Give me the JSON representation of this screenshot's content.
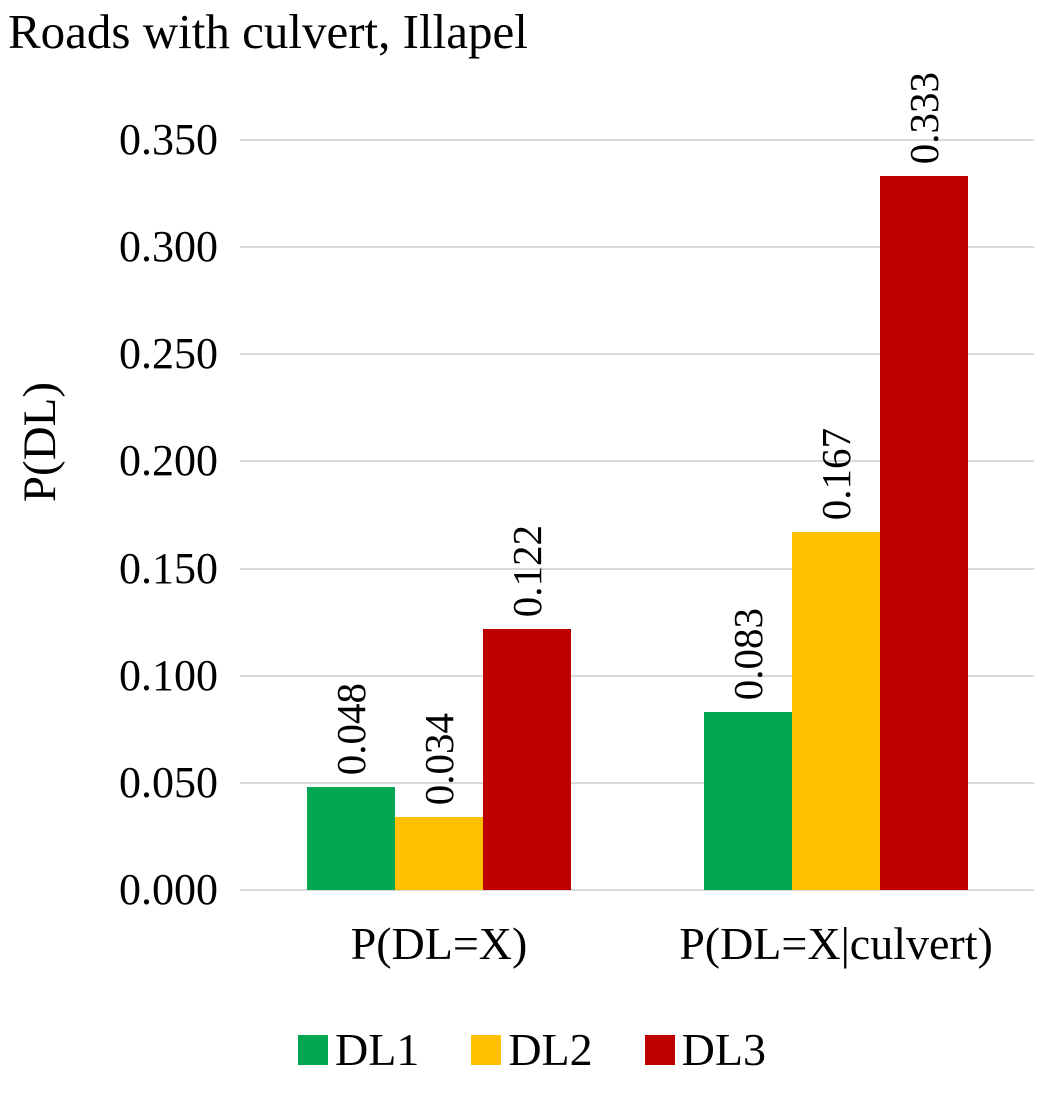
{
  "chart_data": {
    "type": "bar",
    "title": "Roads with culvert, Illapel",
    "ylabel": "P(DL)",
    "xlabel": "",
    "categories": [
      "P(DL=X)",
      "P(DL=X|culvert)"
    ],
    "series": [
      {
        "name": "DL1",
        "color": "#00A651",
        "values": [
          0.048,
          0.083
        ],
        "labels": [
          "0.048",
          "0.083"
        ]
      },
      {
        "name": "DL2",
        "color": "#FFC000",
        "values": [
          0.034,
          0.167
        ],
        "labels": [
          "0.034",
          "0.167"
        ]
      },
      {
        "name": "DL3",
        "color": "#C00000",
        "values": [
          0.122,
          0.333
        ],
        "labels": [
          "0.122",
          "0.333"
        ]
      }
    ],
    "ylim": [
      0,
      0.35
    ],
    "yticks": [
      0.0,
      0.05,
      0.1,
      0.15,
      0.2,
      0.25,
      0.3,
      0.35
    ],
    "ytick_labels": [
      "0.000",
      "0.050",
      "0.100",
      "0.150",
      "0.200",
      "0.250",
      "0.300",
      "0.350"
    ],
    "grid": "horizontal",
    "gridline_color": "#D9D9D9",
    "legend_position": "bottom",
    "bar_value_labels_rotated": true
  }
}
